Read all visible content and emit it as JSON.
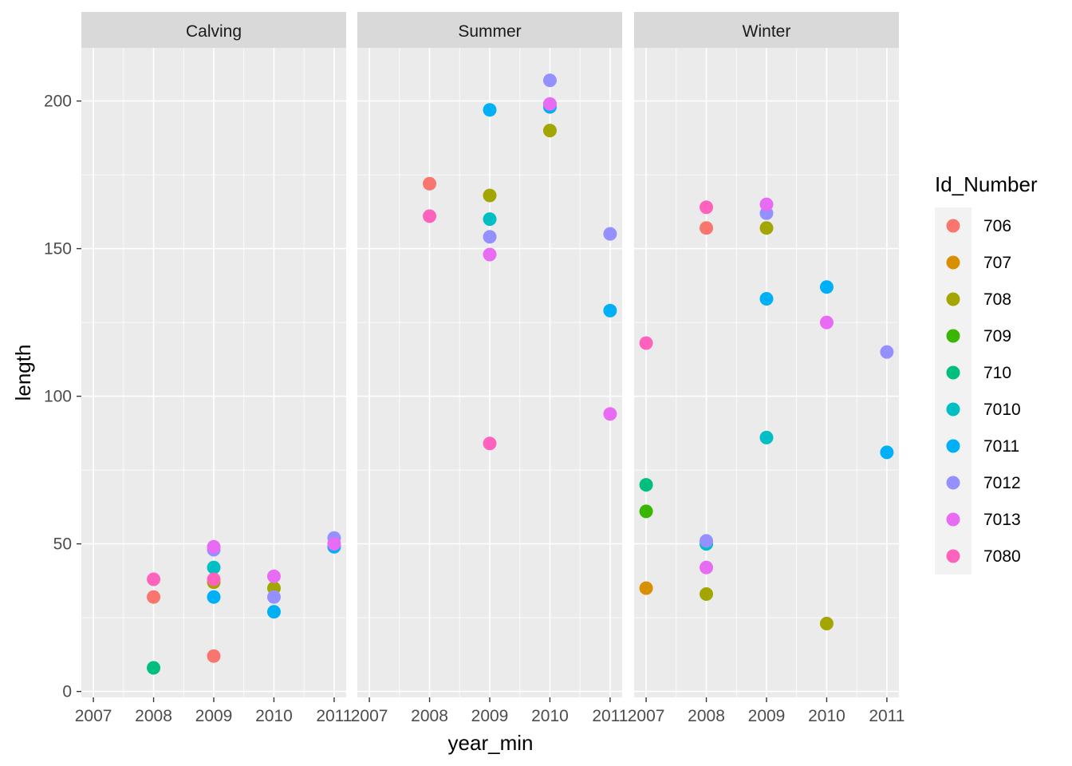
{
  "chart_data": {
    "type": "scatter",
    "facets": [
      "Calving",
      "Summer",
      "Winter"
    ],
    "xlabel": "year_min",
    "ylabel": "length",
    "x_ticks": [
      2007,
      2008,
      2009,
      2010,
      2011
    ],
    "x_tick_labels": [
      "2007",
      "2008",
      "2009",
      "2010",
      "2011"
    ],
    "y_ticks": [
      0,
      50,
      100,
      150,
      200
    ],
    "y_tick_labels": [
      "0",
      "50",
      "100",
      "150",
      "200"
    ],
    "xlim": [
      2006.8,
      2011.2
    ],
    "ylim": [
      -2,
      218
    ],
    "grid": true,
    "legend": {
      "title": "Id_Number",
      "position": "right",
      "entries": [
        "706",
        "707",
        "708",
        "709",
        "710",
        "7010",
        "7011",
        "7012",
        "7013",
        "7080"
      ]
    },
    "colors": {
      "706": "#F8766D",
      "707": "#D89000",
      "708": "#A3A500",
      "709": "#39B600",
      "710": "#00BF7D",
      "7010": "#00BFC4",
      "7011": "#00B0F6",
      "7012": "#9590FF",
      "7013": "#E76BF3",
      "7080": "#FF62BC"
    },
    "points": [
      {
        "facet": "Calving",
        "id": "706",
        "x": 2008,
        "y": 32
      },
      {
        "facet": "Calving",
        "id": "7080",
        "x": 2008,
        "y": 38
      },
      {
        "facet": "Calving",
        "id": "710",
        "x": 2008,
        "y": 8
      },
      {
        "facet": "Calving",
        "id": "706",
        "x": 2009,
        "y": 12
      },
      {
        "facet": "Calving",
        "id": "708",
        "x": 2009,
        "y": 37
      },
      {
        "facet": "Calving",
        "id": "7011",
        "x": 2009,
        "y": 32
      },
      {
        "facet": "Calving",
        "id": "7010",
        "x": 2009,
        "y": 42
      },
      {
        "facet": "Calving",
        "id": "7012",
        "x": 2009,
        "y": 48
      },
      {
        "facet": "Calving",
        "id": "7013",
        "x": 2009,
        "y": 49
      },
      {
        "facet": "Calving",
        "id": "7080",
        "x": 2009,
        "y": 38
      },
      {
        "facet": "Calving",
        "id": "708",
        "x": 2010,
        "y": 35
      },
      {
        "facet": "Calving",
        "id": "7012",
        "x": 2010,
        "y": 32
      },
      {
        "facet": "Calving",
        "id": "7011",
        "x": 2010,
        "y": 27
      },
      {
        "facet": "Calving",
        "id": "7013",
        "x": 2010,
        "y": 39
      },
      {
        "facet": "Calving",
        "id": "7011",
        "x": 2011,
        "y": 49
      },
      {
        "facet": "Calving",
        "id": "7012",
        "x": 2011,
        "y": 52
      },
      {
        "facet": "Calving",
        "id": "7013",
        "x": 2011,
        "y": 50
      },
      {
        "facet": "Summer",
        "id": "706",
        "x": 2008,
        "y": 172
      },
      {
        "facet": "Summer",
        "id": "7080",
        "x": 2008,
        "y": 161
      },
      {
        "facet": "Summer",
        "id": "7011",
        "x": 2009,
        "y": 197
      },
      {
        "facet": "Summer",
        "id": "708",
        "x": 2009,
        "y": 168
      },
      {
        "facet": "Summer",
        "id": "7010",
        "x": 2009,
        "y": 160
      },
      {
        "facet": "Summer",
        "id": "7012",
        "x": 2009,
        "y": 154
      },
      {
        "facet": "Summer",
        "id": "7013",
        "x": 2009,
        "y": 148
      },
      {
        "facet": "Summer",
        "id": "7080",
        "x": 2009,
        "y": 84
      },
      {
        "facet": "Summer",
        "id": "7012",
        "x": 2010,
        "y": 207
      },
      {
        "facet": "Summer",
        "id": "7011",
        "x": 2010,
        "y": 198
      },
      {
        "facet": "Summer",
        "id": "7013",
        "x": 2010,
        "y": 199
      },
      {
        "facet": "Summer",
        "id": "708",
        "x": 2010,
        "y": 190
      },
      {
        "facet": "Summer",
        "id": "7012",
        "x": 2011,
        "y": 155
      },
      {
        "facet": "Summer",
        "id": "7011",
        "x": 2011,
        "y": 129
      },
      {
        "facet": "Summer",
        "id": "7013",
        "x": 2011,
        "y": 94
      },
      {
        "facet": "Winter",
        "id": "7080",
        "x": 2007,
        "y": 118
      },
      {
        "facet": "Winter",
        "id": "710",
        "x": 2007,
        "y": 70
      },
      {
        "facet": "Winter",
        "id": "709",
        "x": 2007,
        "y": 61
      },
      {
        "facet": "Winter",
        "id": "707",
        "x": 2007,
        "y": 35
      },
      {
        "facet": "Winter",
        "id": "7080",
        "x": 2008,
        "y": 164
      },
      {
        "facet": "Winter",
        "id": "706",
        "x": 2008,
        "y": 157
      },
      {
        "facet": "Winter",
        "id": "7010",
        "x": 2008,
        "y": 50
      },
      {
        "facet": "Winter",
        "id": "7012",
        "x": 2008,
        "y": 51
      },
      {
        "facet": "Winter",
        "id": "7013",
        "x": 2008,
        "y": 42
      },
      {
        "facet": "Winter",
        "id": "708",
        "x": 2008,
        "y": 33
      },
      {
        "facet": "Winter",
        "id": "7012",
        "x": 2009,
        "y": 162
      },
      {
        "facet": "Winter",
        "id": "7013",
        "x": 2009,
        "y": 165
      },
      {
        "facet": "Winter",
        "id": "708",
        "x": 2009,
        "y": 157
      },
      {
        "facet": "Winter",
        "id": "7011",
        "x": 2009,
        "y": 133
      },
      {
        "facet": "Winter",
        "id": "7010",
        "x": 2009,
        "y": 86
      },
      {
        "facet": "Winter",
        "id": "7011",
        "x": 2010,
        "y": 137
      },
      {
        "facet": "Winter",
        "id": "7013",
        "x": 2010,
        "y": 125
      },
      {
        "facet": "Winter",
        "id": "708",
        "x": 2010,
        "y": 23
      },
      {
        "facet": "Winter",
        "id": "7012",
        "x": 2011,
        "y": 115
      },
      {
        "facet": "Winter",
        "id": "7011",
        "x": 2011,
        "y": 81
      }
    ]
  }
}
